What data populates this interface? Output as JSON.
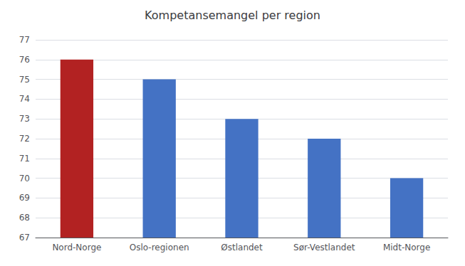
{
  "chart_data": {
    "type": "bar",
    "title": "Kompetansemangel per region",
    "categories": [
      "Nord-Norge",
      "Oslo-regionen",
      "Østlandet",
      "Sør-Vestlandet",
      "Midt-Norge"
    ],
    "values": [
      76,
      75,
      73,
      72,
      70
    ],
    "colors": [
      "#b22222",
      "#4472c4",
      "#4472c4",
      "#4472c4",
      "#4472c4"
    ],
    "ylim": [
      67,
      77
    ],
    "yticks": [
      67,
      68,
      69,
      70,
      71,
      72,
      73,
      74,
      75,
      76,
      77
    ],
    "grid": true
  }
}
